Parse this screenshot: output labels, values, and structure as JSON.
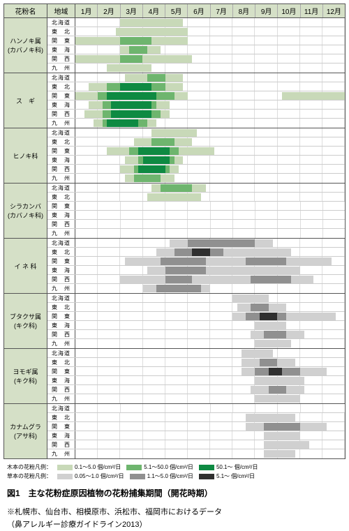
{
  "headers": {
    "pollen": "花粉名",
    "region": "地域"
  },
  "months": [
    "1月",
    "2月",
    "3月",
    "4月",
    "5月",
    "6月",
    "7月",
    "8月",
    "9月",
    "10月",
    "11月",
    "12月"
  ],
  "regions": [
    "北海道",
    "東　北",
    "関　東",
    "東　海",
    "関　西",
    "九　州"
  ],
  "colors": {
    "tree_low": "#c8d9b8",
    "tree_mid": "#6eb56e",
    "tree_high": "#0e8a42",
    "grass_low": "#d0d0d0",
    "grass_mid": "#909090",
    "grass_high": "#303030",
    "header_bg": "#d5e0c7"
  },
  "legends": {
    "tree_label": "木本の花粉凡例：",
    "grass_label": "草本の花粉凡例：",
    "tree": [
      {
        "color": "tree_low",
        "text": "0.1～5.0 個/cm²/日"
      },
      {
        "color": "tree_mid",
        "text": "5.1～50.0 個/cm²/日"
      },
      {
        "color": "tree_high",
        "text": "50.1～ 個/cm²/日"
      }
    ],
    "grass": [
      {
        "color": "grass_low",
        "text": "0.05～1.0 個/cm²/日"
      },
      {
        "color": "grass_mid",
        "text": "1.1～5.0 個/cm²/日"
      },
      {
        "color": "grass_high",
        "text": "5.1～ 個/cm²/日"
      }
    ]
  },
  "caption": "図1　主な花粉症原因植物の花粉捕集期間（開花時期）",
  "note1": "※札幌市、仙台市、相模原市、浜松市、福岡市におけるデータ",
  "note2": "（鼻アレルギー診療ガイドライン2013）",
  "groups": [
    {
      "name": "ハンノキ属\n(カバノキ科)",
      "palette": "tree",
      "rows": [
        [
          {
            "s": 2.0,
            "e": 4.8,
            "l": "low"
          }
        ],
        [
          {
            "s": 1.8,
            "e": 5.0,
            "l": "low"
          }
        ],
        [
          {
            "s": 0.0,
            "e": 5.0,
            "l": "low"
          },
          {
            "s": 2.0,
            "e": 3.4,
            "l": "mid"
          }
        ],
        [
          {
            "s": 2.0,
            "e": 3.8,
            "l": "low"
          },
          {
            "s": 2.4,
            "e": 3.2,
            "l": "mid"
          }
        ],
        [
          {
            "s": 0.0,
            "e": 5.2,
            "l": "low"
          },
          {
            "s": 2.0,
            "e": 3.0,
            "l": "mid"
          }
        ],
        [
          {
            "s": 1.4,
            "e": 3.4,
            "l": "low"
          }
        ]
      ]
    },
    {
      "name": "ス　ギ",
      "palette": "tree",
      "rows": [
        [
          {
            "s": 2.2,
            "e": 4.8,
            "l": "low"
          },
          {
            "s": 3.2,
            "e": 4.0,
            "l": "mid"
          }
        ],
        [
          {
            "s": 0.6,
            "e": 4.8,
            "l": "low"
          },
          {
            "s": 1.4,
            "e": 4.0,
            "l": "mid"
          },
          {
            "s": 2.0,
            "e": 3.4,
            "l": "high"
          }
        ],
        [
          {
            "s": 0.0,
            "e": 5.0,
            "l": "low"
          },
          {
            "s": 1.0,
            "e": 4.4,
            "l": "mid"
          },
          {
            "s": 1.4,
            "e": 3.6,
            "l": "high"
          },
          {
            "s": 9.2,
            "e": 12.0,
            "l": "low"
          }
        ],
        [
          {
            "s": 0.6,
            "e": 4.2,
            "l": "low"
          },
          {
            "s": 1.2,
            "e": 3.6,
            "l": "mid"
          },
          {
            "s": 1.6,
            "e": 3.4,
            "l": "high"
          }
        ],
        [
          {
            "s": 0.4,
            "e": 4.2,
            "l": "low"
          },
          {
            "s": 1.2,
            "e": 3.8,
            "l": "mid"
          },
          {
            "s": 1.6,
            "e": 3.4,
            "l": "high"
          }
        ],
        [
          {
            "s": 0.8,
            "e": 3.6,
            "l": "low"
          },
          {
            "s": 1.2,
            "e": 3.2,
            "l": "mid"
          },
          {
            "s": 1.4,
            "e": 2.8,
            "l": "high"
          }
        ]
      ]
    },
    {
      "name": "ヒノキ科",
      "palette": "tree",
      "rows": [
        [
          {
            "s": 3.4,
            "e": 5.4,
            "l": "low"
          }
        ],
        [
          {
            "s": 2.6,
            "e": 5.2,
            "l": "low"
          },
          {
            "s": 3.4,
            "e": 4.4,
            "l": "mid"
          }
        ],
        [
          {
            "s": 1.4,
            "e": 6.2,
            "l": "low"
          },
          {
            "s": 2.4,
            "e": 4.6,
            "l": "mid"
          },
          {
            "s": 2.8,
            "e": 4.2,
            "l": "high"
          }
        ],
        [
          {
            "s": 2.2,
            "e": 4.8,
            "l": "low"
          },
          {
            "s": 2.8,
            "e": 4.4,
            "l": "mid"
          },
          {
            "s": 3.0,
            "e": 4.2,
            "l": "high"
          }
        ],
        [
          {
            "s": 2.0,
            "e": 4.6,
            "l": "low"
          },
          {
            "s": 2.6,
            "e": 4.2,
            "l": "mid"
          },
          {
            "s": 2.8,
            "e": 4.0,
            "l": "high"
          }
        ],
        [
          {
            "s": 2.2,
            "e": 4.4,
            "l": "low"
          },
          {
            "s": 2.6,
            "e": 3.8,
            "l": "mid"
          }
        ]
      ]
    },
    {
      "name": "シラカンバ\n(カバノキ科)",
      "palette": "tree",
      "rows": [
        [
          {
            "s": 3.4,
            "e": 5.8,
            "l": "low"
          },
          {
            "s": 3.8,
            "e": 5.2,
            "l": "mid"
          }
        ],
        [
          {
            "s": 3.2,
            "e": 5.6,
            "l": "low"
          }
        ],
        [],
        [],
        [],
        []
      ]
    },
    {
      "name": "イ ネ 科",
      "palette": "grass",
      "rows": [
        [
          {
            "s": 4.2,
            "e": 8.8,
            "l": "low"
          },
          {
            "s": 5.0,
            "e": 8.0,
            "l": "mid"
          }
        ],
        [
          {
            "s": 3.6,
            "e": 9.6,
            "l": "low"
          },
          {
            "s": 4.4,
            "e": 6.6,
            "l": "mid"
          },
          {
            "s": 5.2,
            "e": 6.0,
            "l": "high"
          }
        ],
        [
          {
            "s": 2.2,
            "e": 11.4,
            "l": "low"
          },
          {
            "s": 3.8,
            "e": 5.8,
            "l": "mid"
          },
          {
            "s": 7.6,
            "e": 9.4,
            "l": "mid"
          }
        ],
        [
          {
            "s": 3.2,
            "e": 10.0,
            "l": "low"
          },
          {
            "s": 4.0,
            "e": 5.8,
            "l": "mid"
          }
        ],
        [
          {
            "s": 2.0,
            "e": 10.6,
            "l": "low"
          },
          {
            "s": 4.0,
            "e": 5.2,
            "l": "mid"
          },
          {
            "s": 7.8,
            "e": 9.6,
            "l": "mid"
          }
        ],
        [
          {
            "s": 3.0,
            "e": 6.0,
            "l": "low"
          },
          {
            "s": 3.6,
            "e": 5.6,
            "l": "mid"
          }
        ]
      ]
    },
    {
      "name": "ブタクサ属\n(キク科)",
      "palette": "grass",
      "rows": [
        [
          {
            "s": 7.0,
            "e": 8.6,
            "l": "low"
          }
        ],
        [
          {
            "s": 7.2,
            "e": 9.4,
            "l": "low"
          },
          {
            "s": 7.8,
            "e": 8.6,
            "l": "mid"
          }
        ],
        [
          {
            "s": 7.0,
            "e": 11.6,
            "l": "low"
          },
          {
            "s": 7.6,
            "e": 9.4,
            "l": "mid"
          },
          {
            "s": 8.2,
            "e": 9.0,
            "l": "high"
          }
        ],
        [
          {
            "s": 8.0,
            "e": 9.4,
            "l": "low"
          }
        ],
        [
          {
            "s": 7.8,
            "e": 10.2,
            "l": "low"
          },
          {
            "s": 8.4,
            "e": 9.4,
            "l": "mid"
          }
        ],
        [
          {
            "s": 8.0,
            "e": 9.6,
            "l": "low"
          }
        ]
      ]
    },
    {
      "name": "ヨモギ属\n(キク科)",
      "palette": "grass",
      "rows": [
        [
          {
            "s": 7.4,
            "e": 8.8,
            "l": "low"
          }
        ],
        [
          {
            "s": 7.4,
            "e": 9.8,
            "l": "low"
          },
          {
            "s": 8.2,
            "e": 9.0,
            "l": "mid"
          }
        ],
        [
          {
            "s": 7.4,
            "e": 11.2,
            "l": "low"
          },
          {
            "s": 8.0,
            "e": 10.0,
            "l": "mid"
          },
          {
            "s": 8.6,
            "e": 9.2,
            "l": "high"
          }
        ],
        [
          {
            "s": 8.0,
            "e": 10.2,
            "l": "low"
          }
        ],
        [
          {
            "s": 7.8,
            "e": 10.2,
            "l": "low"
          },
          {
            "s": 8.6,
            "e": 9.4,
            "l": "mid"
          }
        ],
        [
          {
            "s": 8.0,
            "e": 10.0,
            "l": "low"
          }
        ]
      ]
    },
    {
      "name": "カナムグラ\n(アサ科)",
      "palette": "grass",
      "rows": [
        [],
        [
          {
            "s": 7.6,
            "e": 9.8,
            "l": "low"
          }
        ],
        [
          {
            "s": 7.6,
            "e": 11.2,
            "l": "low"
          },
          {
            "s": 8.4,
            "e": 10.0,
            "l": "mid"
          }
        ],
        [
          {
            "s": 8.4,
            "e": 10.0,
            "l": "low"
          }
        ],
        [
          {
            "s": 8.4,
            "e": 10.4,
            "l": "low"
          }
        ],
        [
          {
            "s": 8.4,
            "e": 9.8,
            "l": "low"
          }
        ]
      ]
    }
  ]
}
